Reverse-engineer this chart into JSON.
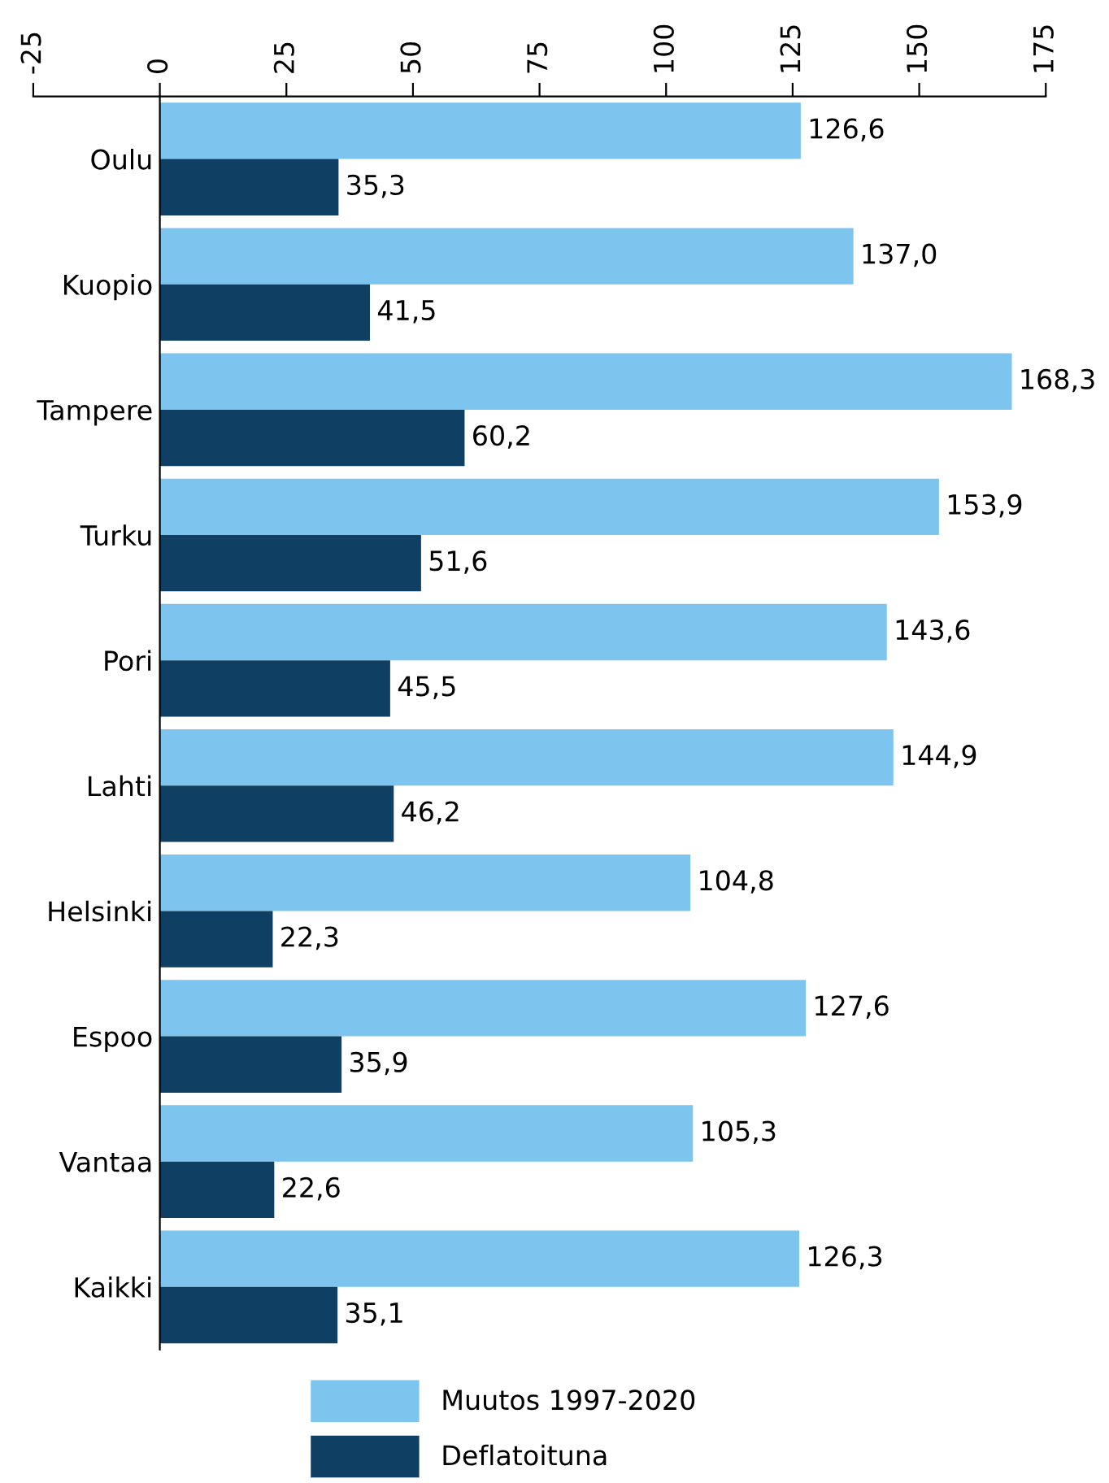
{
  "chart_data": {
    "type": "bar",
    "orientation": "horizontal",
    "categories": [
      "Oulu",
      "Kuopio",
      "Tampere",
      "Turku",
      "Pori",
      "Lahti",
      "Helsinki",
      "Espoo",
      "Vantaa",
      "Kaikki"
    ],
    "series": [
      {
        "name": "Muutos 1997-2020",
        "color": "#7dc5ee",
        "values": [
          126.6,
          137.0,
          168.3,
          153.9,
          143.6,
          144.9,
          104.8,
          127.6,
          105.3,
          126.3
        ],
        "value_labels": [
          "126,6",
          "137,0",
          "168,3",
          "153,9",
          "143,6",
          "144,9",
          "104,8",
          "127,6",
          "105,3",
          "126,3"
        ]
      },
      {
        "name": "Deflatoituna",
        "color": "#0f3f63",
        "values": [
          35.3,
          41.5,
          60.2,
          51.6,
          45.5,
          46.2,
          22.3,
          35.9,
          22.6,
          35.1
        ],
        "value_labels": [
          "35,3",
          "41,5",
          "60,2",
          "51,6",
          "45,5",
          "46,2",
          "22,3",
          "35,9",
          "22,6",
          "35,1"
        ]
      }
    ],
    "xlim": [
      -25,
      175
    ],
    "xticks": [
      -25,
      0,
      25,
      50,
      75,
      100,
      125,
      150,
      175
    ],
    "grid": false,
    "legend": "bottom"
  }
}
